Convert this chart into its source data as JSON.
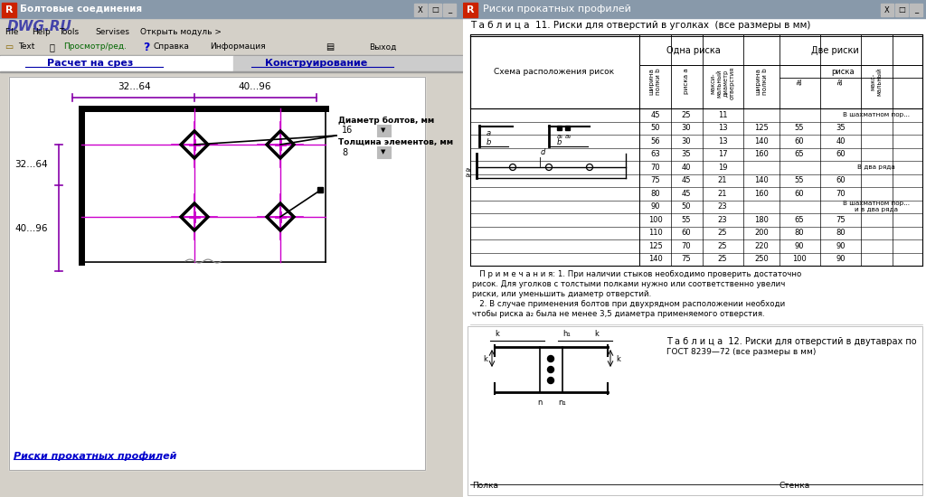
{
  "left_bg": "#d4d0c8",
  "right_bg": "#f0ede0",
  "drawing_bg": "#ffffff",
  "left_title": "Болтовые соединения",
  "right_title": "Риски прокатных профилей",
  "tab1": "Расчет на срез",
  "tab2": "Конструирование",
  "menu_items": [
    "File",
    "Help",
    "Tools",
    "Servises",
    "Открыть модуль >"
  ],
  "dim_top1": "32...64",
  "dim_top2": "40...96",
  "dim_left1": "32...64",
  "dim_left2": "40...96",
  "label_bolt": "Диаметр болтов, мм",
  "val_bolt": "16",
  "label_thick": "Толщина элементов, мм",
  "val_thick": "8",
  "link_text": "Риски прокатных профилей",
  "table_title": "Т а б л и ц а  11. Риски для отверстий в уголках  (все размеры в мм)",
  "col_header1": "Одна риска",
  "col_header2": "Две риски",
  "table_data": [
    [
      45,
      25,
      11,
      "",
      "",
      ""
    ],
    [
      50,
      30,
      13,
      125,
      55,
      35
    ],
    [
      56,
      30,
      13,
      140,
      60,
      40
    ],
    [
      63,
      35,
      17,
      160,
      65,
      60
    ],
    [
      70,
      40,
      19,
      "",
      "",
      ""
    ],
    [
      75,
      45,
      21,
      140,
      55,
      60
    ],
    [
      80,
      45,
      21,
      160,
      60,
      70
    ],
    [
      90,
      50,
      23,
      "",
      "",
      ""
    ],
    [
      100,
      55,
      23,
      180,
      65,
      75
    ],
    [
      110,
      60,
      25,
      200,
      80,
      80
    ],
    [
      125,
      70,
      25,
      220,
      90,
      90
    ],
    [
      140,
      75,
      25,
      250,
      100,
      90
    ]
  ],
  "table2_title": "Т а б л и ц а  12. Риски для отверстий в двутаврах по",
  "table2_sub": "ГОСТ 8239—72 (все размеры в мм)",
  "bolt_marker_color": "#cc00cc",
  "dim_line_color": "#8800aa"
}
